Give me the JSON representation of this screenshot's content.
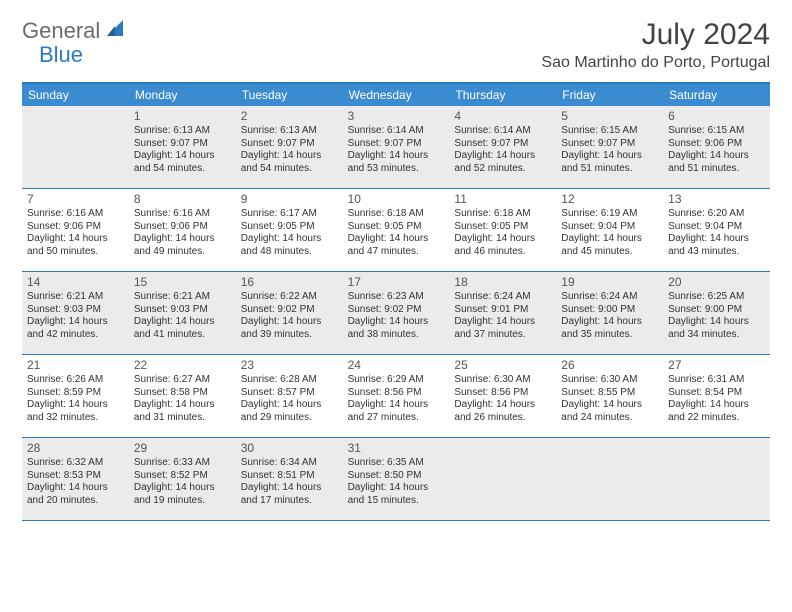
{
  "logo": {
    "text1": "General",
    "text2": "Blue"
  },
  "title": "July 2024",
  "location": "Sao Martinho do Porto, Portugal",
  "colors": {
    "header_bar": "#3b8bd0",
    "border": "#2b7bbf",
    "shaded_bg": "#ebebeb",
    "text": "#333333"
  },
  "weekdays": [
    "Sunday",
    "Monday",
    "Tuesday",
    "Wednesday",
    "Thursday",
    "Friday",
    "Saturday"
  ],
  "weeks": [
    [
      {
        "day": "",
        "shaded": true,
        "sunrise": "",
        "sunset": "",
        "daylight1": "",
        "daylight2": ""
      },
      {
        "day": "1",
        "shaded": true,
        "sunrise": "Sunrise: 6:13 AM",
        "sunset": "Sunset: 9:07 PM",
        "daylight1": "Daylight: 14 hours",
        "daylight2": "and 54 minutes."
      },
      {
        "day": "2",
        "shaded": true,
        "sunrise": "Sunrise: 6:13 AM",
        "sunset": "Sunset: 9:07 PM",
        "daylight1": "Daylight: 14 hours",
        "daylight2": "and 54 minutes."
      },
      {
        "day": "3",
        "shaded": true,
        "sunrise": "Sunrise: 6:14 AM",
        "sunset": "Sunset: 9:07 PM",
        "daylight1": "Daylight: 14 hours",
        "daylight2": "and 53 minutes."
      },
      {
        "day": "4",
        "shaded": true,
        "sunrise": "Sunrise: 6:14 AM",
        "sunset": "Sunset: 9:07 PM",
        "daylight1": "Daylight: 14 hours",
        "daylight2": "and 52 minutes."
      },
      {
        "day": "5",
        "shaded": true,
        "sunrise": "Sunrise: 6:15 AM",
        "sunset": "Sunset: 9:07 PM",
        "daylight1": "Daylight: 14 hours",
        "daylight2": "and 51 minutes."
      },
      {
        "day": "6",
        "shaded": true,
        "sunrise": "Sunrise: 6:15 AM",
        "sunset": "Sunset: 9:06 PM",
        "daylight1": "Daylight: 14 hours",
        "daylight2": "and 51 minutes."
      }
    ],
    [
      {
        "day": "7",
        "shaded": false,
        "sunrise": "Sunrise: 6:16 AM",
        "sunset": "Sunset: 9:06 PM",
        "daylight1": "Daylight: 14 hours",
        "daylight2": "and 50 minutes."
      },
      {
        "day": "8",
        "shaded": false,
        "sunrise": "Sunrise: 6:16 AM",
        "sunset": "Sunset: 9:06 PM",
        "daylight1": "Daylight: 14 hours",
        "daylight2": "and 49 minutes."
      },
      {
        "day": "9",
        "shaded": false,
        "sunrise": "Sunrise: 6:17 AM",
        "sunset": "Sunset: 9:05 PM",
        "daylight1": "Daylight: 14 hours",
        "daylight2": "and 48 minutes."
      },
      {
        "day": "10",
        "shaded": false,
        "sunrise": "Sunrise: 6:18 AM",
        "sunset": "Sunset: 9:05 PM",
        "daylight1": "Daylight: 14 hours",
        "daylight2": "and 47 minutes."
      },
      {
        "day": "11",
        "shaded": false,
        "sunrise": "Sunrise: 6:18 AM",
        "sunset": "Sunset: 9:05 PM",
        "daylight1": "Daylight: 14 hours",
        "daylight2": "and 46 minutes."
      },
      {
        "day": "12",
        "shaded": false,
        "sunrise": "Sunrise: 6:19 AM",
        "sunset": "Sunset: 9:04 PM",
        "daylight1": "Daylight: 14 hours",
        "daylight2": "and 45 minutes."
      },
      {
        "day": "13",
        "shaded": false,
        "sunrise": "Sunrise: 6:20 AM",
        "sunset": "Sunset: 9:04 PM",
        "daylight1": "Daylight: 14 hours",
        "daylight2": "and 43 minutes."
      }
    ],
    [
      {
        "day": "14",
        "shaded": true,
        "sunrise": "Sunrise: 6:21 AM",
        "sunset": "Sunset: 9:03 PM",
        "daylight1": "Daylight: 14 hours",
        "daylight2": "and 42 minutes."
      },
      {
        "day": "15",
        "shaded": true,
        "sunrise": "Sunrise: 6:21 AM",
        "sunset": "Sunset: 9:03 PM",
        "daylight1": "Daylight: 14 hours",
        "daylight2": "and 41 minutes."
      },
      {
        "day": "16",
        "shaded": true,
        "sunrise": "Sunrise: 6:22 AM",
        "sunset": "Sunset: 9:02 PM",
        "daylight1": "Daylight: 14 hours",
        "daylight2": "and 39 minutes."
      },
      {
        "day": "17",
        "shaded": true,
        "sunrise": "Sunrise: 6:23 AM",
        "sunset": "Sunset: 9:02 PM",
        "daylight1": "Daylight: 14 hours",
        "daylight2": "and 38 minutes."
      },
      {
        "day": "18",
        "shaded": true,
        "sunrise": "Sunrise: 6:24 AM",
        "sunset": "Sunset: 9:01 PM",
        "daylight1": "Daylight: 14 hours",
        "daylight2": "and 37 minutes."
      },
      {
        "day": "19",
        "shaded": true,
        "sunrise": "Sunrise: 6:24 AM",
        "sunset": "Sunset: 9:00 PM",
        "daylight1": "Daylight: 14 hours",
        "daylight2": "and 35 minutes."
      },
      {
        "day": "20",
        "shaded": true,
        "sunrise": "Sunrise: 6:25 AM",
        "sunset": "Sunset: 9:00 PM",
        "daylight1": "Daylight: 14 hours",
        "daylight2": "and 34 minutes."
      }
    ],
    [
      {
        "day": "21",
        "shaded": false,
        "sunrise": "Sunrise: 6:26 AM",
        "sunset": "Sunset: 8:59 PM",
        "daylight1": "Daylight: 14 hours",
        "daylight2": "and 32 minutes."
      },
      {
        "day": "22",
        "shaded": false,
        "sunrise": "Sunrise: 6:27 AM",
        "sunset": "Sunset: 8:58 PM",
        "daylight1": "Daylight: 14 hours",
        "daylight2": "and 31 minutes."
      },
      {
        "day": "23",
        "shaded": false,
        "sunrise": "Sunrise: 6:28 AM",
        "sunset": "Sunset: 8:57 PM",
        "daylight1": "Daylight: 14 hours",
        "daylight2": "and 29 minutes."
      },
      {
        "day": "24",
        "shaded": false,
        "sunrise": "Sunrise: 6:29 AM",
        "sunset": "Sunset: 8:56 PM",
        "daylight1": "Daylight: 14 hours",
        "daylight2": "and 27 minutes."
      },
      {
        "day": "25",
        "shaded": false,
        "sunrise": "Sunrise: 6:30 AM",
        "sunset": "Sunset: 8:56 PM",
        "daylight1": "Daylight: 14 hours",
        "daylight2": "and 26 minutes."
      },
      {
        "day": "26",
        "shaded": false,
        "sunrise": "Sunrise: 6:30 AM",
        "sunset": "Sunset: 8:55 PM",
        "daylight1": "Daylight: 14 hours",
        "daylight2": "and 24 minutes."
      },
      {
        "day": "27",
        "shaded": false,
        "sunrise": "Sunrise: 6:31 AM",
        "sunset": "Sunset: 8:54 PM",
        "daylight1": "Daylight: 14 hours",
        "daylight2": "and 22 minutes."
      }
    ],
    [
      {
        "day": "28",
        "shaded": true,
        "sunrise": "Sunrise: 6:32 AM",
        "sunset": "Sunset: 8:53 PM",
        "daylight1": "Daylight: 14 hours",
        "daylight2": "and 20 minutes."
      },
      {
        "day": "29",
        "shaded": true,
        "sunrise": "Sunrise: 6:33 AM",
        "sunset": "Sunset: 8:52 PM",
        "daylight1": "Daylight: 14 hours",
        "daylight2": "and 19 minutes."
      },
      {
        "day": "30",
        "shaded": true,
        "sunrise": "Sunrise: 6:34 AM",
        "sunset": "Sunset: 8:51 PM",
        "daylight1": "Daylight: 14 hours",
        "daylight2": "and 17 minutes."
      },
      {
        "day": "31",
        "shaded": true,
        "sunrise": "Sunrise: 6:35 AM",
        "sunset": "Sunset: 8:50 PM",
        "daylight1": "Daylight: 14 hours",
        "daylight2": "and 15 minutes."
      },
      {
        "day": "",
        "shaded": true,
        "sunrise": "",
        "sunset": "",
        "daylight1": "",
        "daylight2": ""
      },
      {
        "day": "",
        "shaded": true,
        "sunrise": "",
        "sunset": "",
        "daylight1": "",
        "daylight2": ""
      },
      {
        "day": "",
        "shaded": true,
        "sunrise": "",
        "sunset": "",
        "daylight1": "",
        "daylight2": ""
      }
    ]
  ]
}
